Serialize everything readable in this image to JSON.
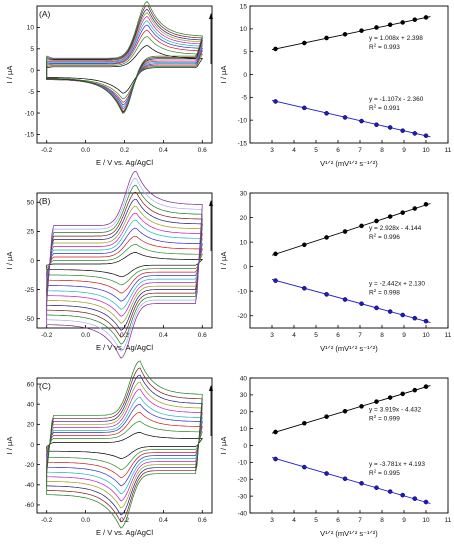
{
  "figure": {
    "rows": [
      {
        "panel_label": "(A)",
        "cv": {
          "type": "line",
          "xlabel": "E / V vs. Ag/AgCl",
          "ylabel": "I / μA",
          "xlim": [
            -0.25,
            0.65
          ],
          "ylim": [
            -17,
            15
          ],
          "xticks": [
            -0.2,
            0.0,
            0.2,
            0.4,
            0.6
          ],
          "xtick_labels": [
            "-0.2",
            "0.0",
            "0.2",
            "0.4",
            "0.6"
          ],
          "yticks": [
            -15,
            -10,
            -5,
            0,
            5,
            10
          ],
          "ytick_labels": [
            "-15",
            "-10",
            "-5",
            "0",
            "5",
            "10"
          ],
          "curve_count": 10,
          "ox_peak_e": 0.32,
          "red_peak_e": 0.19,
          "ox_peaks": [
            5.0,
            6.8,
            8.0,
            9.0,
            9.8,
            10.6,
            11.3,
            11.9,
            12.6,
            13.3
          ],
          "red_peaks": [
            -6.0,
            -7.6,
            -8.7,
            -9.6,
            -10.4,
            -11.1,
            -11.8,
            -12.4,
            -12.9,
            -13.4
          ],
          "cap_ox": [
            0.8,
            1.1,
            1.4,
            1.6,
            1.8,
            2.0,
            2.2,
            2.4,
            2.6,
            2.8
          ],
          "cap_red": [
            0.6,
            0.9,
            1.2,
            1.5,
            1.8,
            2.1,
            2.4,
            2.7,
            3.0,
            3.3
          ],
          "arrow": "up"
        },
        "linear": {
          "type": "scatter",
          "xlabel": "V¹ᐟ² (mV¹ᐟ² s⁻¹ᐟ²)",
          "ylabel": "I / μA",
          "xlim": [
            2,
            11
          ],
          "ylim": [
            -15,
            15
          ],
          "xticks": [
            3,
            4,
            5,
            6,
            7,
            8,
            9,
            10,
            11
          ],
          "xtick_labels": [
            "3",
            "4",
            "5",
            "6",
            "7",
            "8",
            "9",
            "10",
            "11"
          ],
          "yticks": [
            -15,
            -10,
            -5,
            0,
            5,
            10,
            15
          ],
          "ytick_labels": [
            "-15",
            "-10",
            "-5",
            "0",
            "5",
            "10",
            "15"
          ],
          "series": [
            {
              "x": [
                3.16,
                4.47,
                5.48,
                6.32,
                7.07,
                7.75,
                8.37,
                8.94,
                9.49,
                10.0
              ],
              "y": [
                5.6,
                6.9,
                8.0,
                8.8,
                9.6,
                10.3,
                10.9,
                11.4,
                12.0,
                12.5
              ],
              "slope": 1.008,
              "intercept": 2.398,
              "equation": "y = 1.008x + 2.398",
              "r2_label": "R",
              "r2_value": "= 0.993",
              "color": "#000000"
            },
            {
              "x": [
                3.16,
                4.47,
                5.48,
                6.32,
                7.07,
                7.75,
                8.37,
                8.94,
                9.49,
                10.0
              ],
              "y": [
                -5.9,
                -7.3,
                -8.5,
                -9.4,
                -10.2,
                -11.0,
                -11.6,
                -12.3,
                -12.9,
                -13.4
              ],
              "slope": -1.107,
              "intercept": -2.36,
              "equation": "y = -1.107x - 2.360",
              "r2_label": "R",
              "r2_value": "= 0.991",
              "color": "#1a1acc"
            }
          ]
        }
      },
      {
        "panel_label": "(B)",
        "cv": {
          "type": "line",
          "xlabel": "E / V vs. Ag/AgCl",
          "ylabel": "I / μA",
          "xlim": [
            -0.25,
            0.65
          ],
          "ylim": [
            -58,
            58
          ],
          "xticks": [
            -0.2,
            0.0,
            0.2,
            0.4,
            0.6
          ],
          "xtick_labels": [
            "-0.2",
            "0.0",
            "0.2",
            "0.4",
            "0.6"
          ],
          "yticks": [
            -50,
            -25,
            0,
            25,
            50
          ],
          "ytick_labels": [
            "-50",
            "-25",
            "0",
            "25",
            "50"
          ],
          "curve_count": 12,
          "ox_peak_e": 0.26,
          "red_peak_e": 0.18,
          "ox_peaks": [
            10,
            14,
            18,
            22,
            26,
            29,
            32,
            35,
            38,
            41,
            44,
            47
          ],
          "red_peaks": [
            -10,
            -14,
            -18,
            -22,
            -26,
            -29,
            -32,
            -35,
            -38,
            -41,
            -44,
            -47
          ],
          "cap_ox": [
            -3,
            0,
            3,
            6,
            9,
            12,
            15,
            18,
            21,
            24,
            27,
            30
          ],
          "cap_red": [
            -4,
            -7,
            -10,
            -13,
            -16,
            -19,
            -22,
            -25,
            -28,
            -31,
            -34,
            -37
          ],
          "arrow": "up"
        },
        "linear": {
          "type": "scatter",
          "xlabel": "V¹ᐟ² (mV¹ᐟ² s⁻¹ᐟ²)",
          "ylabel": "I / μA",
          "xlim": [
            2,
            11
          ],
          "ylim": [
            -25,
            30
          ],
          "xticks": [
            3,
            4,
            5,
            6,
            7,
            8,
            9,
            10,
            11
          ],
          "xtick_labels": [
            "3",
            "4",
            "5",
            "6",
            "7",
            "8",
            "9",
            "10",
            "11"
          ],
          "yticks": [
            -20,
            -10,
            0,
            10,
            20,
            30
          ],
          "ytick_labels": [
            "-20",
            "-10",
            "0",
            "10",
            "20",
            "30"
          ],
          "series": [
            {
              "x": [
                3.16,
                4.47,
                5.48,
                6.32,
                7.07,
                7.75,
                8.37,
                8.94,
                9.49,
                10.0
              ],
              "y": [
                5.2,
                8.9,
                11.9,
                14.3,
                16.6,
                18.6,
                20.4,
                22.0,
                23.7,
                25.4
              ],
              "slope": 2.928,
              "intercept": -4.144,
              "equation": "y = 2.928x - 4.144",
              "r2_label": "R",
              "r2_value": "= 0.996",
              "color": "#000000"
            },
            {
              "x": [
                3.16,
                4.47,
                5.48,
                6.32,
                7.07,
                7.75,
                8.37,
                8.94,
                9.49,
                10.0
              ],
              "y": [
                -5.7,
                -8.8,
                -11.3,
                -13.4,
                -15.1,
                -16.8,
                -18.3,
                -19.7,
                -21.0,
                -22.2
              ],
              "slope": -2.442,
              "intercept": 2.13,
              "equation": "y = -2.442x + 2.130",
              "r2_label": "R",
              "r2_value": "= 0.998",
              "color": "#1a1acc"
            }
          ]
        }
      },
      {
        "panel_label": "(C)",
        "cv": {
          "type": "line",
          "xlabel": "E / V vs. Ag/AgCl",
          "ylabel": "I / μA",
          "xlim": [
            -0.25,
            0.65
          ],
          "ylim": [
            -68,
            66
          ],
          "xticks": [
            -0.2,
            0.0,
            0.2,
            0.4,
            0.6
          ],
          "xtick_labels": [
            "-0.2",
            "0.0",
            "0.2",
            "0.4",
            "0.6"
          ],
          "yticks": [
            -60,
            -40,
            -20,
            0,
            20,
            40,
            60
          ],
          "ytick_labels": [
            "-60",
            "-40",
            "-20",
            "0",
            "20",
            "40",
            "60"
          ],
          "curve_count": 10,
          "ox_peak_e": 0.28,
          "red_peak_e": 0.18,
          "ox_peaks": [
            10,
            17,
            23,
            28,
            33,
            38,
            42,
            46,
            50,
            54
          ],
          "red_peaks": [
            -12,
            -20,
            -25,
            -30,
            -35,
            -39,
            -43,
            -47,
            -51,
            -54
          ],
          "cap_ox": [
            2,
            6,
            9,
            12,
            14,
            17,
            20,
            23,
            26,
            29
          ],
          "cap_red": [
            -2,
            -5,
            -8,
            -11,
            -14,
            -17,
            -20,
            -23,
            -26,
            -29
          ],
          "arrow": "up"
        },
        "linear": {
          "type": "scatter",
          "xlabel": "V¹ᐟ² (mV¹ᐟ² s⁻¹ᐟ²)",
          "ylabel": "I / μA",
          "xlim": [
            2,
            11
          ],
          "ylim": [
            -40,
            40
          ],
          "xticks": [
            3,
            4,
            5,
            6,
            7,
            8,
            9,
            10,
            11
          ],
          "xtick_labels": [
            "3",
            "4",
            "5",
            "6",
            "7",
            "8",
            "9",
            "10",
            "11"
          ],
          "yticks": [
            -40,
            -30,
            -20,
            -10,
            0,
            10,
            20,
            30,
            40
          ],
          "ytick_labels": [
            "-40",
            "-30",
            "-20",
            "-10",
            "0",
            "10",
            "20",
            "30",
            "40"
          ],
          "series": [
            {
              "x": [
                3.16,
                4.47,
                5.48,
                6.32,
                7.07,
                7.75,
                8.37,
                8.94,
                9.49,
                10.0
              ],
              "y": [
                8.0,
                13.2,
                17.1,
                20.3,
                23.2,
                26.0,
                28.4,
                30.6,
                32.8,
                34.9
              ],
              "slope": 3.919,
              "intercept": -4.432,
              "equation": "y = 3.919x - 4.432",
              "r2_label": "R",
              "r2_value": "= 0.999",
              "color": "#000000"
            },
            {
              "x": [
                3.16,
                4.47,
                5.48,
                6.32,
                7.07,
                7.75,
                8.37,
                8.94,
                9.49,
                10.0
              ],
              "y": [
                -8.0,
                -12.8,
                -16.6,
                -19.7,
                -22.4,
                -25.0,
                -27.3,
                -29.4,
                -31.5,
                -33.5
              ],
              "slope": -3.781,
              "intercept": 4.193,
              "equation": "y = -3.781x + 4.193",
              "r2_label": "R",
              "r2_value": "= 0.995",
              "color": "#1a1acc"
            }
          ]
        }
      }
    ]
  },
  "palette": [
    "#000000",
    "#2a8a2a",
    "#d11b1b",
    "#2a2ad4",
    "#19b7b7",
    "#c21bc2",
    "#9a9a18",
    "#1a1a80",
    "#7a1a1a",
    "#1a7a1a",
    "#a8a8ff",
    "#7a2a8a"
  ]
}
